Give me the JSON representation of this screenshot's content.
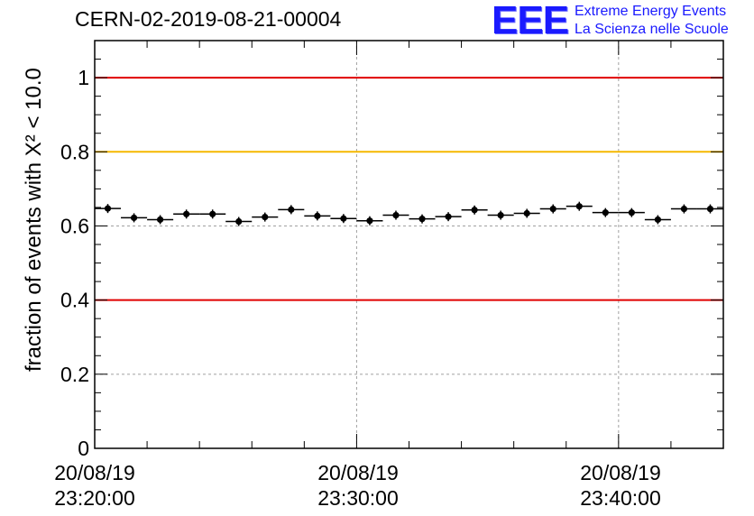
{
  "title": "CERN-02-2019-08-21-00004",
  "logo": {
    "mark": "EEE",
    "line1": "Extreme Energy Events",
    "line2": "La Scienza nelle Scuole",
    "color": "#1a1aff"
  },
  "chart_data": {
    "type": "scatter",
    "ylabel": "fraction of events with X² < 10.0",
    "ylim": [
      0,
      1.1
    ],
    "yticks": [
      "0",
      "0.2",
      "0.4",
      "0.6",
      "0.8",
      "1"
    ],
    "ytick_values": [
      0,
      0.2,
      0.4,
      0.6,
      0.8,
      1.0
    ],
    "xlim": [
      "20/08/19 23:20:00",
      "20/08/19 23:44:00"
    ],
    "xticks": [
      {
        "date": "20/08/19",
        "time": "23:20:00"
      },
      {
        "date": "20/08/19",
        "time": "23:30:00"
      },
      {
        "date": "20/08/19",
        "time": "23:40:00"
      }
    ],
    "x": [
      "23:20:30",
      "23:21:30",
      "23:22:30",
      "23:23:30",
      "23:24:30",
      "23:25:30",
      "23:26:30",
      "23:27:30",
      "23:28:30",
      "23:29:30",
      "23:30:30",
      "23:31:30",
      "23:32:30",
      "23:33:30",
      "23:34:30",
      "23:35:30",
      "23:36:30",
      "23:37:30",
      "23:38:30",
      "23:39:30",
      "23:40:30",
      "23:41:30",
      "23:42:30",
      "23:43:30"
    ],
    "values": [
      0.647,
      0.622,
      0.617,
      0.632,
      0.632,
      0.612,
      0.624,
      0.644,
      0.627,
      0.62,
      0.614,
      0.629,
      0.619,
      0.625,
      0.643,
      0.629,
      0.634,
      0.646,
      0.653,
      0.636,
      0.636,
      0.617,
      0.646,
      0.646
    ],
    "reference_lines": [
      {
        "y": 1.0,
        "color": "#e00000"
      },
      {
        "y": 0.8,
        "color": "#f5b800"
      },
      {
        "y": 0.4,
        "color": "#e00000"
      }
    ],
    "grid": true
  }
}
